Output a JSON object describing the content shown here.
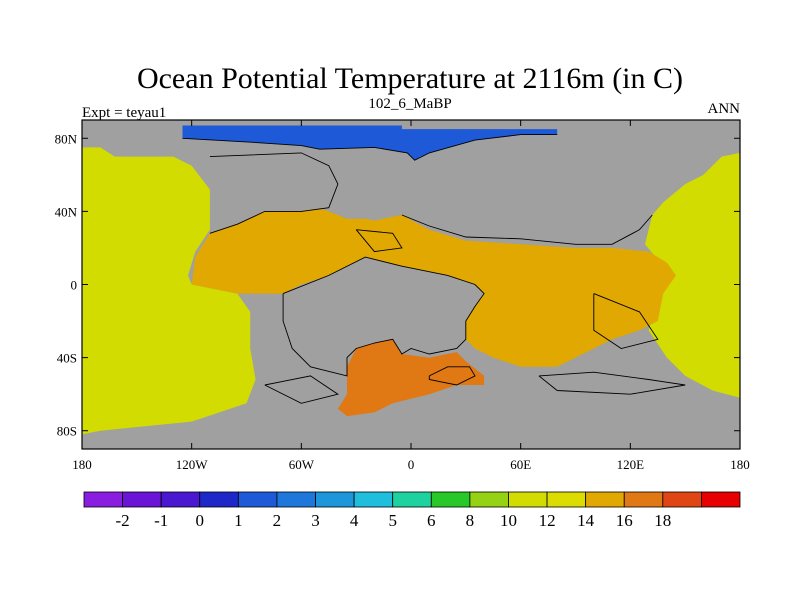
{
  "chart_data": {
    "type": "heatmap",
    "title": "Ocean Potential Temperature at 2116m (in C)",
    "subtitle_left": "Expt = teyau1",
    "subtitle_center": "102_6_MaBP",
    "subtitle_right": "ANN",
    "xlim": [
      -180,
      180
    ],
    "ylim": [
      -90,
      90
    ],
    "x_ticks": [
      {
        "value": -180,
        "label": "180"
      },
      {
        "value": -120,
        "label": "120W"
      },
      {
        "value": -60,
        "label": "60W"
      },
      {
        "value": 0,
        "label": "0"
      },
      {
        "value": 60,
        "label": "60E"
      },
      {
        "value": 120,
        "label": "120E"
      },
      {
        "value": 180,
        "label": "180"
      }
    ],
    "y_ticks": [
      {
        "value": 80,
        "label": "80N"
      },
      {
        "value": 40,
        "label": "40N"
      },
      {
        "value": 0,
        "label": "0"
      },
      {
        "value": -40,
        "label": "40S"
      },
      {
        "value": -80,
        "label": "80S"
      }
    ],
    "land_color": "#a0a0a0",
    "colorbar": {
      "colors": [
        "#8a1ee0",
        "#6a14d8",
        "#4a18d0",
        "#1e28c8",
        "#1e5ad8",
        "#1e78dc",
        "#1e96dc",
        "#1ebedc",
        "#1ed2a0",
        "#28c828",
        "#96d214",
        "#d2dc00",
        "#dcdc00",
        "#e0a800",
        "#e07814",
        "#e04614",
        "#e60000"
      ],
      "labels": [
        "-2",
        "-1",
        "0",
        "1",
        "2",
        "3",
        "4",
        "5",
        "6",
        "8",
        "10",
        "12",
        "14",
        "16",
        "18"
      ]
    },
    "regions": [
      {
        "name": "arctic-ocean",
        "value_class": "1-2",
        "color": "#1e5ad8",
        "polygon": [
          [
            -125,
            87
          ],
          [
            -5,
            87
          ],
          [
            -5,
            85
          ],
          [
            80,
            85
          ],
          [
            80,
            82
          ],
          [
            60,
            82
          ],
          [
            35,
            79
          ],
          [
            10,
            72
          ],
          [
            2,
            68
          ],
          [
            -2,
            72
          ],
          [
            -20,
            75
          ],
          [
            -50,
            74
          ],
          [
            -60,
            76
          ],
          [
            -90,
            78
          ],
          [
            -125,
            80
          ]
        ]
      },
      {
        "name": "pacific-east",
        "value_class": "12",
        "color": "#d2dc00",
        "polygon": [
          [
            -180,
            75
          ],
          [
            -170,
            75
          ],
          [
            -162,
            70
          ],
          [
            -130,
            70
          ],
          [
            -120,
            65
          ],
          [
            -110,
            52
          ],
          [
            -108,
            40
          ],
          [
            -110,
            30
          ],
          [
            -118,
            18
          ],
          [
            -122,
            5
          ],
          [
            -120,
            0
          ],
          [
            -105,
            -3
          ],
          [
            -95,
            -5
          ],
          [
            -88,
            -15
          ],
          [
            -88,
            -35
          ],
          [
            -85,
            -52
          ],
          [
            -90,
            -65
          ],
          [
            -120,
            -75
          ],
          [
            -170,
            -80
          ],
          [
            -180,
            -82
          ]
        ]
      },
      {
        "name": "pacific-west",
        "value_class": "12",
        "color": "#d2dc00",
        "polygon": [
          [
            180,
            72
          ],
          [
            170,
            70
          ],
          [
            160,
            60
          ],
          [
            150,
            55
          ],
          [
            138,
            45
          ],
          [
            132,
            38
          ],
          [
            128,
            22
          ],
          [
            138,
            10
          ],
          [
            135,
            -10
          ],
          [
            130,
            -25
          ],
          [
            140,
            -40
          ],
          [
            150,
            -50
          ],
          [
            165,
            -58
          ],
          [
            180,
            -62
          ]
        ]
      },
      {
        "name": "tethys-central",
        "value_class": "12-14",
        "color": "#e0a800",
        "polygon": [
          [
            -110,
            28
          ],
          [
            -95,
            33
          ],
          [
            -80,
            40
          ],
          [
            -60,
            45
          ],
          [
            -45,
            40
          ],
          [
            -35,
            36
          ],
          [
            -25,
            36
          ],
          [
            -20,
            35
          ],
          [
            -5,
            38
          ],
          [
            10,
            30
          ],
          [
            30,
            24
          ],
          [
            60,
            22
          ],
          [
            90,
            20
          ],
          [
            110,
            20
          ],
          [
            130,
            18
          ],
          [
            140,
            12
          ],
          [
            145,
            5
          ],
          [
            138,
            -5
          ],
          [
            135,
            -20
          ],
          [
            125,
            -25
          ],
          [
            110,
            -30
          ],
          [
            100,
            -35
          ],
          [
            90,
            -40
          ],
          [
            80,
            -45
          ],
          [
            60,
            -45
          ],
          [
            45,
            -40
          ],
          [
            35,
            -35
          ],
          [
            30,
            -30
          ],
          [
            30,
            -20
          ],
          [
            35,
            -12
          ],
          [
            40,
            -5
          ],
          [
            35,
            0
          ],
          [
            20,
            2
          ],
          [
            5,
            5
          ],
          [
            -5,
            5
          ],
          [
            -15,
            7
          ],
          [
            -25,
            15
          ],
          [
            -45,
            5
          ],
          [
            -60,
            0
          ],
          [
            -70,
            -5
          ],
          [
            -95,
            -5
          ],
          [
            -120,
            0
          ],
          [
            -118,
            15
          ]
        ]
      },
      {
        "name": "southern-atlantic",
        "value_class": "14-16",
        "color": "#e07814",
        "polygon": [
          [
            -30,
            -35
          ],
          [
            -20,
            -32
          ],
          [
            -8,
            -22
          ],
          [
            -5,
            -38
          ],
          [
            10,
            -40
          ],
          [
            25,
            -37
          ],
          [
            30,
            -42
          ],
          [
            40,
            -50
          ],
          [
            40,
            -55
          ],
          [
            25,
            -55
          ],
          [
            10,
            -60
          ],
          [
            -10,
            -65
          ],
          [
            -20,
            -70
          ],
          [
            -35,
            -72
          ],
          [
            -40,
            -68
          ],
          [
            -35,
            -60
          ],
          [
            -35,
            -45
          ]
        ]
      },
      {
        "name": "south-atlantic-channel",
        "value_class": "14-16",
        "color": "#e07814",
        "polygon": [
          [
            -5,
            -12
          ],
          [
            0,
            -12
          ],
          [
            0,
            -30
          ],
          [
            -5,
            -30
          ]
        ]
      },
      {
        "name": "land-north-america",
        "value_class": "land",
        "color": "#a0a0a0",
        "polygon": [
          [
            -110,
            70
          ],
          [
            -60,
            72
          ],
          [
            -45,
            65
          ],
          [
            -40,
            55
          ],
          [
            -45,
            42
          ],
          [
            -60,
            40
          ],
          [
            -80,
            40
          ],
          [
            -95,
            33
          ],
          [
            -110,
            28
          ]
        ]
      },
      {
        "name": "land-eurasia",
        "value_class": "land",
        "color": "#a0a0a0",
        "polygon": [
          [
            5,
            70
          ],
          [
            60,
            78
          ],
          [
            130,
            70
          ],
          [
            160,
            60
          ],
          [
            150,
            55
          ],
          [
            138,
            45
          ],
          [
            132,
            38
          ],
          [
            125,
            30
          ],
          [
            110,
            22
          ],
          [
            90,
            22
          ],
          [
            60,
            25
          ],
          [
            30,
            26
          ],
          [
            10,
            32
          ],
          [
            -5,
            40
          ],
          [
            -10,
            55
          ]
        ]
      },
      {
        "name": "land-africa-south-america",
        "value_class": "land",
        "color": "#a0a0a0",
        "polygon": [
          [
            -70,
            -5
          ],
          [
            -45,
            5
          ],
          [
            -25,
            15
          ],
          [
            -5,
            10
          ],
          [
            20,
            5
          ],
          [
            35,
            0
          ],
          [
            40,
            -5
          ],
          [
            35,
            -12
          ],
          [
            30,
            -20
          ],
          [
            30,
            -30
          ],
          [
            25,
            -35
          ],
          [
            10,
            -38
          ],
          [
            0,
            -35
          ],
          [
            -5,
            -38
          ],
          [
            -10,
            -30
          ],
          [
            -20,
            -32
          ],
          [
            -30,
            -35
          ],
          [
            -35,
            -40
          ],
          [
            -35,
            -50
          ],
          [
            -55,
            -45
          ],
          [
            -65,
            -35
          ],
          [
            -70,
            -20
          ]
        ]
      },
      {
        "name": "land-antarctica",
        "value_class": "land",
        "color": "#a0a0a0",
        "polygon": [
          [
            -180,
            -82
          ],
          [
            -120,
            -75
          ],
          [
            -90,
            -68
          ],
          [
            -60,
            -75
          ],
          [
            -40,
            -72
          ],
          [
            -20,
            -72
          ],
          [
            0,
            -66
          ],
          [
            25,
            -58
          ],
          [
            45,
            -56
          ],
          [
            80,
            -60
          ],
          [
            110,
            -62
          ],
          [
            140,
            -58
          ],
          [
            165,
            -62
          ],
          [
            180,
            -65
          ],
          [
            180,
            -90
          ],
          [
            -180,
            -90
          ]
        ]
      }
    ],
    "coast_outlines": [
      [
        [
          -125,
          80
        ],
        [
          -90,
          78
        ],
        [
          -60,
          76
        ],
        [
          -50,
          74
        ],
        [
          -20,
          75
        ],
        [
          -2,
          72
        ],
        [
          2,
          68
        ],
        [
          10,
          72
        ],
        [
          35,
          79
        ],
        [
          60,
          82
        ],
        [
          80,
          82
        ]
      ],
      [
        [
          -110,
          70
        ],
        [
          -60,
          72
        ],
        [
          -45,
          65
        ],
        [
          -40,
          55
        ],
        [
          -45,
          42
        ],
        [
          -60,
          40
        ],
        [
          -80,
          40
        ],
        [
          -95,
          33
        ],
        [
          -110,
          28
        ]
      ],
      [
        [
          -70,
          -5
        ],
        [
          -45,
          5
        ],
        [
          -25,
          15
        ],
        [
          -5,
          10
        ],
        [
          20,
          5
        ],
        [
          35,
          0
        ],
        [
          40,
          -5
        ],
        [
          35,
          -12
        ],
        [
          30,
          -20
        ],
        [
          30,
          -30
        ],
        [
          25,
          -35
        ],
        [
          10,
          -38
        ],
        [
          0,
          -35
        ],
        [
          -5,
          -38
        ],
        [
          -10,
          -30
        ],
        [
          -20,
          -32
        ],
        [
          -30,
          -35
        ],
        [
          -35,
          -40
        ],
        [
          -35,
          -50
        ],
        [
          -55,
          -45
        ],
        [
          -65,
          -35
        ],
        [
          -70,
          -20
        ],
        [
          -70,
          -5
        ]
      ],
      [
        [
          -5,
          38
        ],
        [
          10,
          32
        ],
        [
          30,
          26
        ],
        [
          60,
          25
        ],
        [
          90,
          22
        ],
        [
          110,
          22
        ],
        [
          125,
          30
        ],
        [
          132,
          38
        ]
      ],
      [
        [
          10,
          -50
        ],
        [
          20,
          -45
        ],
        [
          32,
          -45
        ],
        [
          35,
          -50
        ],
        [
          25,
          -55
        ],
        [
          10,
          -52
        ],
        [
          10,
          -50
        ]
      ],
      [
        [
          -80,
          -55
        ],
        [
          -55,
          -50
        ],
        [
          -40,
          -60
        ],
        [
          -60,
          -65
        ],
        [
          -80,
          -55
        ]
      ],
      [
        [
          70,
          -50
        ],
        [
          100,
          -48
        ],
        [
          130,
          -52
        ],
        [
          150,
          -55
        ],
        [
          120,
          -60
        ],
        [
          80,
          -58
        ],
        [
          70,
          -50
        ]
      ],
      [
        [
          100,
          -5
        ],
        [
          125,
          -15
        ],
        [
          135,
          -30
        ],
        [
          115,
          -35
        ],
        [
          100,
          -25
        ],
        [
          100,
          -5
        ]
      ],
      [
        [
          -30,
          30
        ],
        [
          -10,
          28
        ],
        [
          -5,
          20
        ],
        [
          -20,
          18
        ],
        [
          -30,
          30
        ]
      ]
    ]
  }
}
